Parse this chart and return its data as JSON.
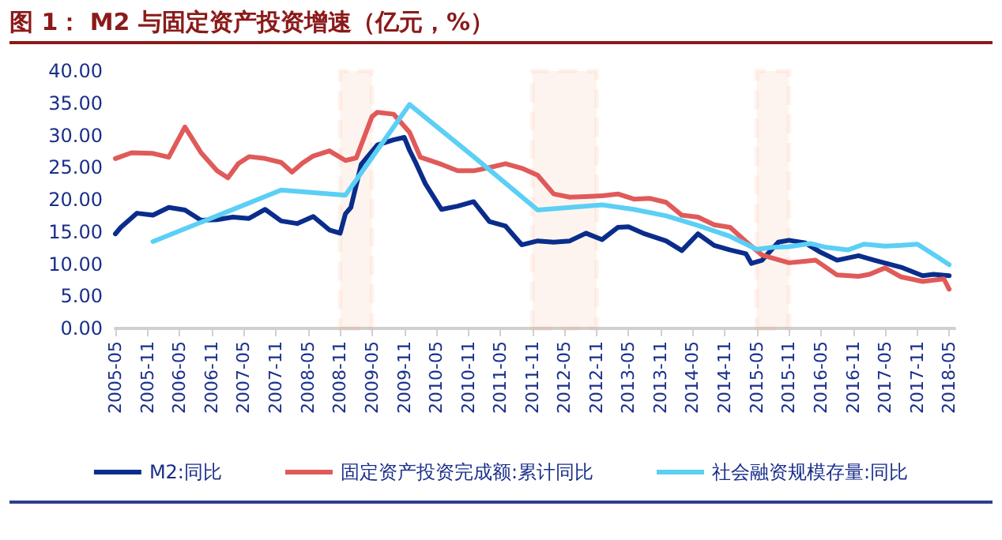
{
  "chart_data": {
    "type": "line",
    "title": "图 1：  M2 与固定资产投资增速（亿元，%）",
    "series": [
      {
        "name": "M2:同比",
        "color": "#0a2d8c",
        "x": [
          "2005-05",
          "2005-06",
          "2005-09",
          "2005-12",
          "2006-03",
          "2006-06",
          "2006-09",
          "2006-12",
          "2007-03",
          "2007-06",
          "2007-09",
          "2007-12",
          "2008-03",
          "2008-06",
          "2008-09",
          "2008-11",
          "2008-12",
          "2009-01",
          "2009-03",
          "2009-06",
          "2009-09",
          "2009-11",
          "2009-12",
          "2010-01",
          "2010-03",
          "2010-06",
          "2010-09",
          "2010-12",
          "2011-03",
          "2011-06",
          "2011-09",
          "2011-12",
          "2012-03",
          "2012-06",
          "2012-09",
          "2012-12",
          "2013-03",
          "2013-05",
          "2013-08",
          "2013-12",
          "2014-03",
          "2014-06",
          "2014-09",
          "2014-12",
          "2015-03",
          "2015-04",
          "2015-06",
          "2015-09",
          "2015-11",
          "2016-02",
          "2016-05",
          "2016-08",
          "2016-12",
          "2017-03",
          "2017-08",
          "2017-12",
          "2018-02",
          "2018-05"
        ],
        "values": [
          14.7,
          15.7,
          17.9,
          17.6,
          18.8,
          18.4,
          16.8,
          16.9,
          17.3,
          17.1,
          18.5,
          16.7,
          16.3,
          17.4,
          15.3,
          14.8,
          17.8,
          18.8,
          25.5,
          28.5,
          29.3,
          29.7,
          27.7,
          26.0,
          22.5,
          18.5,
          19.0,
          19.7,
          16.6,
          15.9,
          13.0,
          13.6,
          13.4,
          13.6,
          14.8,
          13.8,
          15.7,
          15.8,
          14.7,
          13.6,
          12.1,
          14.7,
          12.9,
          12.2,
          11.6,
          10.1,
          10.6,
          13.4,
          13.7,
          13.3,
          11.8,
          10.6,
          11.3,
          10.6,
          9.5,
          8.2,
          8.4,
          8.2
        ]
      },
      {
        "name": "固定资产投资完成额:累计同比",
        "color": "#e05a5a",
        "x": [
          "2005-05",
          "2005-08",
          "2005-12",
          "2006-03",
          "2006-06",
          "2006-09",
          "2006-12",
          "2007-02",
          "2007-04",
          "2007-06",
          "2007-09",
          "2007-12",
          "2008-02",
          "2008-04",
          "2008-06",
          "2008-09",
          "2008-12",
          "2009-02",
          "2009-05",
          "2009-06",
          "2009-09",
          "2009-12",
          "2010-02",
          "2010-06",
          "2010-09",
          "2010-12",
          "2011-03",
          "2011-06",
          "2011-09",
          "2011-12",
          "2012-03",
          "2012-06",
          "2012-09",
          "2012-12",
          "2013-03",
          "2013-06",
          "2013-09",
          "2013-12",
          "2014-03",
          "2014-06",
          "2014-09",
          "2014-12",
          "2015-03",
          "2015-06",
          "2015-11",
          "2016-04",
          "2016-08",
          "2016-12",
          "2017-02",
          "2017-05",
          "2017-08",
          "2017-12",
          "2018-04",
          "2018-05"
        ],
        "values": [
          26.4,
          27.3,
          27.2,
          26.6,
          31.3,
          27.3,
          24.5,
          23.4,
          25.6,
          26.7,
          26.4,
          25.8,
          24.3,
          25.7,
          26.8,
          27.6,
          26.1,
          26.5,
          32.9,
          33.6,
          33.3,
          30.5,
          26.6,
          25.5,
          24.5,
          24.5,
          25.0,
          25.6,
          24.9,
          23.8,
          20.9,
          20.4,
          20.5,
          20.6,
          20.9,
          20.1,
          20.2,
          19.6,
          17.6,
          17.3,
          16.1,
          15.7,
          13.5,
          11.4,
          10.2,
          10.6,
          8.3,
          8.1,
          8.4,
          9.4,
          8.0,
          7.3,
          7.7,
          6.1
        ]
      },
      {
        "name": "社会融资规模存量:同比",
        "color": "#5bcff5",
        "x": [
          "2005-12",
          "2007-12",
          "2008-12",
          "2009-12",
          "2010-12",
          "2011-12",
          "2012-12",
          "2013-06",
          "2013-12",
          "2014-06",
          "2014-12",
          "2015-05",
          "2015-08",
          "2015-11",
          "2016-03",
          "2016-06",
          "2016-10",
          "2017-01",
          "2017-05",
          "2017-08",
          "2017-11",
          "2018-03",
          "2018-05"
        ],
        "values": [
          13.5,
          21.5,
          20.7,
          34.8,
          26.7,
          18.4,
          19.2,
          18.5,
          17.5,
          16.0,
          14.3,
          12.3,
          12.6,
          12.7,
          13.2,
          12.6,
          12.2,
          13.1,
          12.8,
          12.9,
          13.1,
          11.0,
          9.9
        ]
      }
    ],
    "xlim": [
      "2005-05",
      "2018-06"
    ],
    "xticks": [
      "2005-05",
      "2005-11",
      "2006-05",
      "2006-11",
      "2007-05",
      "2007-11",
      "2008-05",
      "2008-11",
      "2009-05",
      "2009-11",
      "2010-05",
      "2010-11",
      "2011-05",
      "2011-11",
      "2012-05",
      "2012-11",
      "2013-05",
      "2013-11",
      "2014-05",
      "2014-11",
      "2015-05",
      "2015-11",
      "2016-05",
      "2016-11",
      "2017-05",
      "2017-11",
      "2018-05"
    ],
    "ylim": [
      0,
      40
    ],
    "yticks": [
      {
        "value": 0,
        "label": "0.00"
      },
      {
        "value": 5,
        "label": "5.00"
      },
      {
        "value": 10,
        "label": "10.00"
      },
      {
        "value": 15,
        "label": "15.00"
      },
      {
        "value": 20,
        "label": "20.00"
      },
      {
        "value": 25,
        "label": "25.00"
      },
      {
        "value": 30,
        "label": "30.00"
      },
      {
        "value": 35,
        "label": "35.00"
      },
      {
        "value": 40,
        "label": "40.00"
      }
    ],
    "bands": [
      {
        "axis": "x",
        "from": "2008-11",
        "to": "2009-05",
        "color": "#f4a77a"
      },
      {
        "axis": "x",
        "from": "2011-11",
        "to": "2012-11",
        "color": "#f4a77a"
      },
      {
        "axis": "x",
        "from": "2015-05",
        "to": "2015-11",
        "color": "#f4a77a"
      }
    ],
    "grid": false,
    "legend": "bottom",
    "marker": "none",
    "line_style": "solid"
  }
}
